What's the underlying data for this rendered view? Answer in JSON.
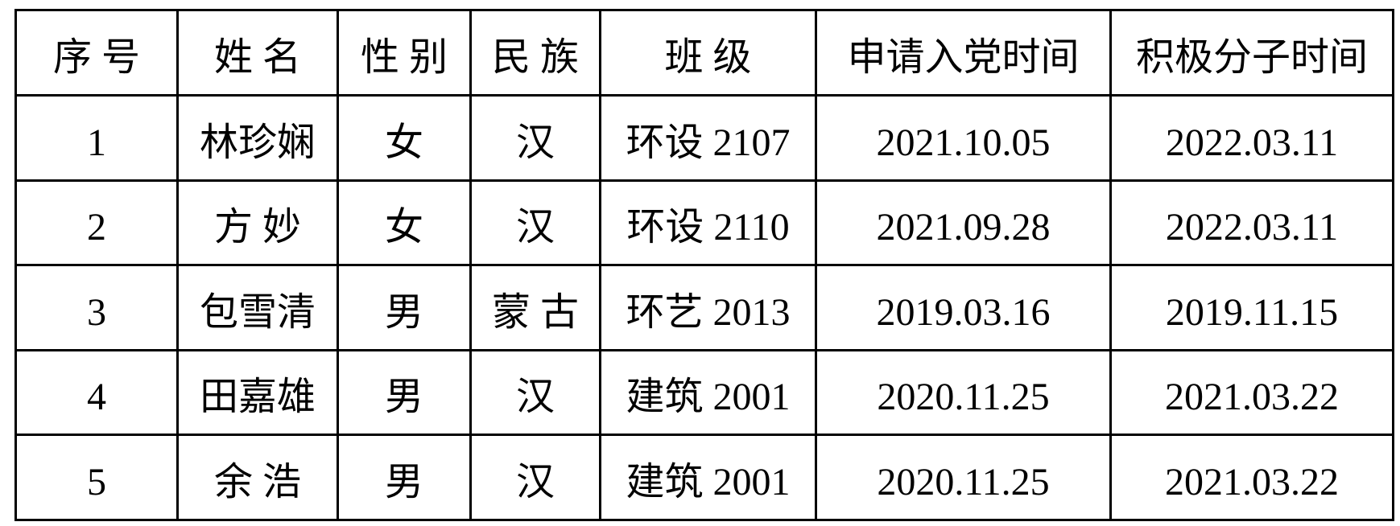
{
  "page": {
    "background_color": "#ffffff",
    "border_color": "#000000",
    "text_color": "#000000"
  },
  "table": {
    "columns": [
      {
        "key": "index",
        "label": "序 号"
      },
      {
        "key": "name",
        "label": "姓 名"
      },
      {
        "key": "gender",
        "label": "性 别"
      },
      {
        "key": "ethnicity",
        "label": "民 族"
      },
      {
        "key": "class",
        "label": "班 级"
      },
      {
        "key": "apply_time",
        "label": "申请入党时间"
      },
      {
        "key": "activist_time",
        "label": "积极分子时间"
      }
    ],
    "rows": [
      [
        "1",
        "林珍娴",
        "女",
        "汉",
        "环设 2107",
        "2021.10.05",
        "2022.03.11"
      ],
      [
        "2",
        "方 妙",
        "女",
        "汉",
        "环设 2110",
        "2021.09.28",
        "2022.03.11"
      ],
      [
        "3",
        "包雪清",
        "男",
        "蒙 古",
        "环艺 2013",
        "2019.03.16",
        "2019.11.15"
      ],
      [
        "4",
        "田嘉雄",
        "男",
        "汉",
        "建筑 2001",
        "2020.11.25",
        "2021.03.22"
      ],
      [
        "5",
        "余 浩",
        "男",
        "汉",
        "建筑 2001",
        "2020.11.25",
        "2021.03.22"
      ]
    ]
  }
}
